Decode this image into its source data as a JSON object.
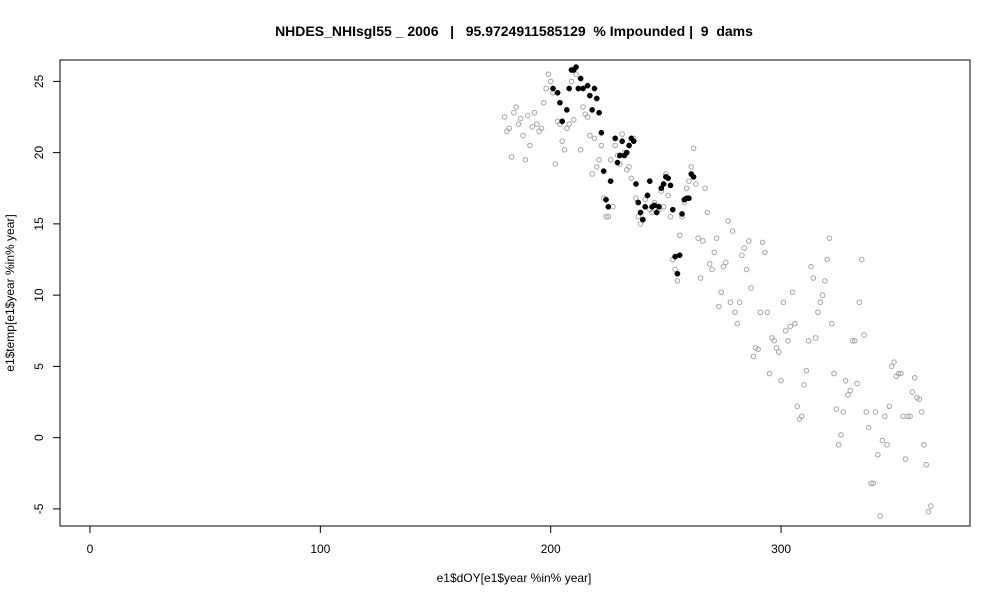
{
  "chart_data": {
    "type": "scatter",
    "title": "NHDES_NHIsgl55 _ 2006   |   95.9724911585129  % Impounded |  9  dams",
    "xlabel": "e1$dOY[e1$year %in% year]",
    "ylabel": "e1$temp[e1$year %in% year]",
    "xlim": [
      -13,
      382
    ],
    "ylim": [
      -6.2,
      26.5
    ],
    "xticks": [
      0,
      100,
      200,
      300
    ],
    "yticks": [
      -5,
      0,
      5,
      10,
      15,
      20,
      25
    ],
    "grid": false,
    "colors": {
      "open": "#a6a6a6",
      "filled": "#000000"
    },
    "series": [
      {
        "style": "open",
        "points": [
          [
            180,
            22.5
          ],
          [
            181,
            21.5
          ],
          [
            182,
            21.7
          ],
          [
            183,
            19.7
          ],
          [
            184,
            22.8
          ],
          [
            185,
            23.2
          ],
          [
            186,
            22.0
          ],
          [
            187,
            22.4
          ],
          [
            188,
            21.2
          ],
          [
            189,
            19.5
          ],
          [
            190,
            22.6
          ],
          [
            191,
            20.5
          ],
          [
            192,
            21.8
          ],
          [
            193,
            22.8
          ],
          [
            194,
            22.0
          ],
          [
            195,
            21.5
          ],
          [
            196,
            21.7
          ],
          [
            197,
            23.5
          ],
          [
            198,
            24.5
          ],
          [
            199,
            25.5
          ],
          [
            200,
            25.0
          ],
          [
            201,
            24.2
          ],
          [
            202,
            19.2
          ],
          [
            203,
            22.2
          ],
          [
            204,
            22.0
          ],
          [
            205,
            20.8
          ],
          [
            206,
            20.2
          ],
          [
            207,
            21.7
          ],
          [
            208,
            22.0
          ],
          [
            209,
            25.0
          ],
          [
            210,
            22.3
          ],
          [
            211,
            25.5
          ],
          [
            212,
            24.5
          ],
          [
            213,
            20.2
          ],
          [
            214,
            23.2
          ],
          [
            215,
            22.7
          ],
          [
            216,
            22.5
          ],
          [
            217,
            21.2
          ],
          [
            218,
            18.5
          ],
          [
            219,
            21.0
          ],
          [
            220,
            19.0
          ],
          [
            221,
            19.5
          ],
          [
            222,
            20.5
          ],
          [
            223,
            16.8
          ],
          [
            224,
            15.5
          ],
          [
            225,
            15.5
          ],
          [
            226,
            19.5
          ],
          [
            227,
            16.2
          ],
          [
            228,
            20.5
          ],
          [
            229,
            19.8
          ],
          [
            230,
            19.2
          ],
          [
            231,
            21.3
          ],
          [
            232,
            20.0
          ],
          [
            233,
            18.8
          ],
          [
            234,
            19.0
          ],
          [
            235,
            18.2
          ],
          [
            236,
            21.0
          ],
          [
            237,
            16.8
          ],
          [
            238,
            15.5
          ],
          [
            239,
            15.0
          ],
          [
            240,
            15.3
          ],
          [
            241,
            16.7
          ],
          [
            242,
            17.0
          ],
          [
            243,
            16.0
          ],
          [
            244,
            15.8
          ],
          [
            245,
            16.5
          ],
          [
            246,
            16.3
          ],
          [
            247,
            16.0
          ],
          [
            248,
            17.3
          ],
          [
            249,
            16.2
          ],
          [
            250,
            18.5
          ],
          [
            251,
            17.0
          ],
          [
            252,
            15.5
          ],
          [
            253,
            12.5
          ],
          [
            254,
            11.8
          ],
          [
            255,
            11.0
          ],
          [
            256,
            14.2
          ],
          [
            257,
            15.5
          ],
          [
            258,
            16.5
          ],
          [
            259,
            17.5
          ],
          [
            260,
            18.0
          ],
          [
            261,
            19.0
          ],
          [
            262,
            20.3
          ],
          [
            263,
            17.8
          ],
          [
            264,
            14.0
          ],
          [
            265,
            11.2
          ],
          [
            266,
            13.8
          ],
          [
            267,
            17.5
          ],
          [
            268,
            15.8
          ],
          [
            269,
            12.2
          ],
          [
            270,
            11.8
          ],
          [
            271,
            13.0
          ],
          [
            272,
            14.0
          ],
          [
            273,
            9.2
          ],
          [
            274,
            10.2
          ],
          [
            275,
            12.0
          ],
          [
            276,
            12.3
          ],
          [
            277,
            15.2
          ],
          [
            278,
            9.5
          ],
          [
            279,
            14.5
          ],
          [
            280,
            8.8
          ],
          [
            281,
            8.0
          ],
          [
            282,
            9.5
          ],
          [
            283,
            12.8
          ],
          [
            284,
            13.3
          ],
          [
            285,
            11.8
          ],
          [
            286,
            13.8
          ],
          [
            287,
            10.5
          ],
          [
            288,
            5.7
          ],
          [
            289,
            6.3
          ],
          [
            290,
            6.2
          ],
          [
            291,
            8.8
          ],
          [
            292,
            13.7
          ],
          [
            293,
            13.0
          ],
          [
            294,
            8.8
          ],
          [
            295,
            4.5
          ],
          [
            296,
            7.0
          ],
          [
            297,
            6.8
          ],
          [
            298,
            6.3
          ],
          [
            299,
            6.0
          ],
          [
            300,
            4.0
          ],
          [
            301,
            9.5
          ],
          [
            302,
            7.5
          ],
          [
            303,
            6.8
          ],
          [
            304,
            7.8
          ],
          [
            305,
            10.2
          ],
          [
            306,
            8.0
          ],
          [
            307,
            2.2
          ],
          [
            308,
            1.3
          ],
          [
            309,
            1.5
          ],
          [
            310,
            3.7
          ],
          [
            311,
            4.7
          ],
          [
            312,
            6.8
          ],
          [
            313,
            12.0
          ],
          [
            314,
            11.2
          ],
          [
            315,
            7.0
          ],
          [
            316,
            8.8
          ],
          [
            317,
            9.5
          ],
          [
            318,
            10.0
          ],
          [
            319,
            11.0
          ],
          [
            320,
            12.5
          ],
          [
            321,
            14.0
          ],
          [
            322,
            8.0
          ],
          [
            323,
            4.5
          ],
          [
            324,
            2.0
          ],
          [
            325,
            -0.5
          ],
          [
            326,
            0.2
          ],
          [
            327,
            1.8
          ],
          [
            328,
            4.0
          ],
          [
            329,
            3.0
          ],
          [
            330,
            3.3
          ],
          [
            331,
            6.8
          ],
          [
            332,
            6.8
          ],
          [
            333,
            3.8
          ],
          [
            334,
            9.5
          ],
          [
            335,
            12.5
          ],
          [
            336,
            7.2
          ],
          [
            337,
            1.8
          ],
          [
            338,
            0.7
          ],
          [
            339,
            -3.2
          ],
          [
            340,
            -3.2
          ],
          [
            341,
            1.8
          ],
          [
            342,
            -1.2
          ],
          [
            343,
            -5.5
          ],
          [
            344,
            -0.2
          ],
          [
            345,
            1.5
          ],
          [
            346,
            -0.5
          ],
          [
            347,
            2.2
          ],
          [
            348,
            5.0
          ],
          [
            349,
            5.3
          ],
          [
            350,
            4.3
          ],
          [
            351,
            4.5
          ],
          [
            352,
            4.5
          ],
          [
            353,
            1.5
          ],
          [
            354,
            -1.5
          ],
          [
            355,
            1.5
          ],
          [
            356,
            1.5
          ],
          [
            357,
            3.2
          ],
          [
            358,
            4.2
          ],
          [
            359,
            2.8
          ],
          [
            360,
            2.7
          ],
          [
            361,
            1.8
          ],
          [
            362,
            -0.5
          ],
          [
            363,
            -1.9
          ],
          [
            364,
            -5.2
          ],
          [
            365,
            -4.8
          ]
        ]
      },
      {
        "style": "filled",
        "points": [
          [
            201,
            24.5
          ],
          [
            203,
            24.2
          ],
          [
            204,
            23.5
          ],
          [
            205,
            22.2
          ],
          [
            207,
            23.0
          ],
          [
            208,
            24.5
          ],
          [
            209,
            25.8
          ],
          [
            210,
            25.8
          ],
          [
            211,
            26.0
          ],
          [
            212,
            24.5
          ],
          [
            213,
            25.2
          ],
          [
            214,
            24.5
          ],
          [
            216,
            24.7
          ],
          [
            217,
            24.0
          ],
          [
            218,
            23.0
          ],
          [
            219,
            24.5
          ],
          [
            220,
            23.8
          ],
          [
            221,
            22.8
          ],
          [
            222,
            21.4
          ],
          [
            223,
            18.7
          ],
          [
            224,
            16.7
          ],
          [
            225,
            16.2
          ],
          [
            226,
            18.0
          ],
          [
            228,
            21.0
          ],
          [
            229,
            19.3
          ],
          [
            230,
            19.8
          ],
          [
            231,
            20.8
          ],
          [
            232,
            19.8
          ],
          [
            233,
            20.0
          ],
          [
            234,
            20.5
          ],
          [
            235,
            21.0
          ],
          [
            236,
            20.8
          ],
          [
            237,
            17.8
          ],
          [
            238,
            16.5
          ],
          [
            239,
            15.8
          ],
          [
            240,
            15.3
          ],
          [
            241,
            16.2
          ],
          [
            242,
            17.0
          ],
          [
            243,
            18.0
          ],
          [
            244,
            16.2
          ],
          [
            245,
            16.3
          ],
          [
            246,
            15.8
          ],
          [
            247,
            16.2
          ],
          [
            248,
            17.5
          ],
          [
            249,
            17.8
          ],
          [
            250,
            18.3
          ],
          [
            251,
            18.2
          ],
          [
            252,
            17.7
          ],
          [
            253,
            16.0
          ],
          [
            254,
            12.7
          ],
          [
            255,
            11.5
          ],
          [
            256,
            12.8
          ],
          [
            257,
            15.7
          ],
          [
            258,
            16.7
          ],
          [
            259,
            16.8
          ],
          [
            260,
            16.8
          ],
          [
            261,
            18.5
          ],
          [
            262,
            18.3
          ]
        ]
      }
    ]
  }
}
